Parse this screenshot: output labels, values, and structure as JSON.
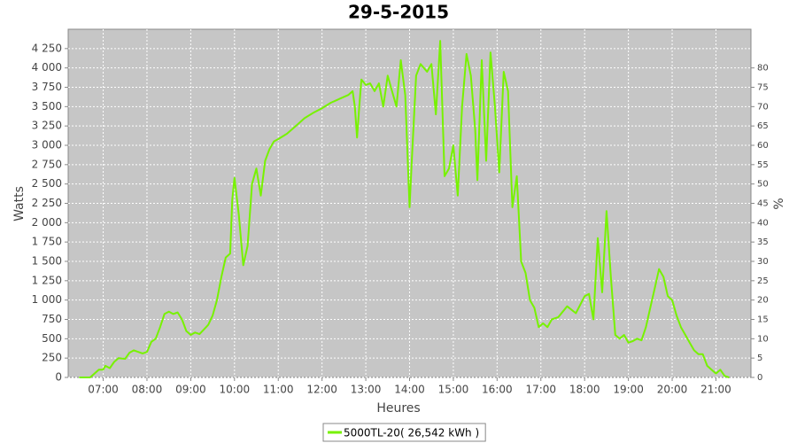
{
  "chart_data": {
    "type": "line",
    "title": "29-5-2015",
    "x_label": "Heures",
    "y_label": "Watts",
    "y2_label": "%",
    "xlim": [
      6.2,
      21.8
    ],
    "xticks": [
      {
        "value": 7,
        "label": "07:00"
      },
      {
        "value": 8,
        "label": "08:00"
      },
      {
        "value": 9,
        "label": "09:00"
      },
      {
        "value": 10,
        "label": "10:00"
      },
      {
        "value": 11,
        "label": "11:00"
      },
      {
        "value": 12,
        "label": "12:00"
      },
      {
        "value": 13,
        "label": "13:00"
      },
      {
        "value": 14,
        "label": "14:00"
      },
      {
        "value": 15,
        "label": "15:00"
      },
      {
        "value": 16,
        "label": "16:00"
      },
      {
        "value": 17,
        "label": "17:00"
      },
      {
        "value": 18,
        "label": "18:00"
      },
      {
        "value": 19,
        "label": "19:00"
      },
      {
        "value": 20,
        "label": "20:00"
      },
      {
        "value": 21,
        "label": "21:00"
      }
    ],
    "ylim": [
      0,
      4500
    ],
    "yticks": [
      0,
      250,
      500,
      750,
      {
        "value": 1000,
        "label": "1 000"
      },
      {
        "value": 1250,
        "label": "1 250"
      },
      {
        "value": 1500,
        "label": "1 500"
      },
      {
        "value": 1750,
        "label": "1 750"
      },
      {
        "value": 2000,
        "label": "2 000"
      },
      {
        "value": 2250,
        "label": "2 250"
      },
      {
        "value": 2500,
        "label": "2 500"
      },
      {
        "value": 2750,
        "label": "2 750"
      },
      {
        "value": 3000,
        "label": "3 000"
      },
      {
        "value": 3250,
        "label": "3 250"
      },
      {
        "value": 3500,
        "label": "3 500"
      },
      {
        "value": 3750,
        "label": "3 750"
      },
      {
        "value": 4000,
        "label": "4 000"
      },
      {
        "value": 4250,
        "label": "4 250"
      }
    ],
    "y2lim": [
      0,
      90
    ],
    "y2ticks": [
      0,
      5,
      10,
      15,
      20,
      25,
      30,
      35,
      40,
      45,
      50,
      55,
      60,
      65,
      70,
      75,
      80
    ],
    "grid": true,
    "legend": "bottom",
    "series": [
      {
        "name": "5000TL-20( 26,542 kWh )",
        "color": "#77f200",
        "x": [
          6.45,
          6.7,
          6.8,
          6.9,
          7.0,
          7.05,
          7.15,
          7.25,
          7.35,
          7.5,
          7.6,
          7.7,
          7.8,
          7.9,
          8.0,
          8.1,
          8.2,
          8.3,
          8.4,
          8.5,
          8.6,
          8.7,
          8.8,
          8.9,
          9.0,
          9.1,
          9.2,
          9.3,
          9.4,
          9.5,
          9.6,
          9.7,
          9.8,
          9.9,
          9.95,
          10.0,
          10.1,
          10.2,
          10.3,
          10.4,
          10.5,
          10.6,
          10.7,
          10.8,
          10.9,
          11.0,
          11.2,
          11.4,
          11.6,
          11.8,
          12.0,
          12.2,
          12.4,
          12.6,
          12.7,
          12.75,
          12.8,
          12.85,
          12.9,
          13.0,
          13.1,
          13.2,
          13.3,
          13.4,
          13.5,
          13.6,
          13.7,
          13.8,
          13.9,
          14.0,
          14.05,
          14.15,
          14.25,
          14.4,
          14.5,
          14.6,
          14.7,
          14.8,
          14.9,
          15.0,
          15.1,
          15.2,
          15.3,
          15.4,
          15.5,
          15.55,
          15.65,
          15.75,
          15.85,
          15.95,
          16.05,
          16.15,
          16.25,
          16.35,
          16.45,
          16.55,
          16.65,
          16.75,
          16.85,
          16.95,
          17.05,
          17.15,
          17.25,
          17.4,
          17.6,
          17.8,
          18.0,
          18.1,
          18.2,
          18.3,
          18.4,
          18.5,
          18.6,
          18.7,
          18.8,
          18.9,
          19.0,
          19.1,
          19.2,
          19.3,
          19.4,
          19.5,
          19.6,
          19.7,
          19.8,
          19.9,
          20.0,
          20.1,
          20.2,
          20.3,
          20.4,
          20.5,
          20.6,
          20.7,
          20.8,
          20.9,
          21.0,
          21.1,
          21.2,
          21.3
        ],
        "values": [
          0,
          0,
          50,
          100,
          100,
          150,
          120,
          200,
          250,
          240,
          320,
          350,
          330,
          310,
          330,
          460,
          500,
          650,
          820,
          850,
          820,
          840,
          750,
          600,
          550,
          580,
          560,
          620,
          680,
          800,
          1000,
          1300,
          1550,
          1600,
          2300,
          2580,
          2100,
          1450,
          1700,
          2500,
          2700,
          2350,
          2800,
          2950,
          3050,
          3080,
          3150,
          3250,
          3350,
          3420,
          3480,
          3550,
          3600,
          3650,
          3700,
          3500,
          3100,
          3500,
          3850,
          3780,
          3800,
          3700,
          3800,
          3500,
          3900,
          3700,
          3500,
          4100,
          3650,
          2200,
          2800,
          3900,
          4050,
          3950,
          4050,
          3400,
          4350,
          2600,
          2700,
          3000,
          2350,
          3500,
          4180,
          3900,
          3200,
          2550,
          4100,
          2800,
          4200,
          3500,
          2650,
          3950,
          3700,
          2200,
          2600,
          1500,
          1350,
          1000,
          900,
          650,
          700,
          650,
          750,
          780,
          920,
          830,
          1050,
          1080,
          750,
          1800,
          1100,
          2150,
          1300,
          550,
          500,
          550,
          450,
          470,
          500,
          480,
          650,
          900,
          1150,
          1400,
          1300,
          1050,
          1000,
          800,
          650,
          550,
          450,
          350,
          300,
          300,
          150,
          100,
          50,
          100,
          20,
          0
        ]
      }
    ]
  }
}
